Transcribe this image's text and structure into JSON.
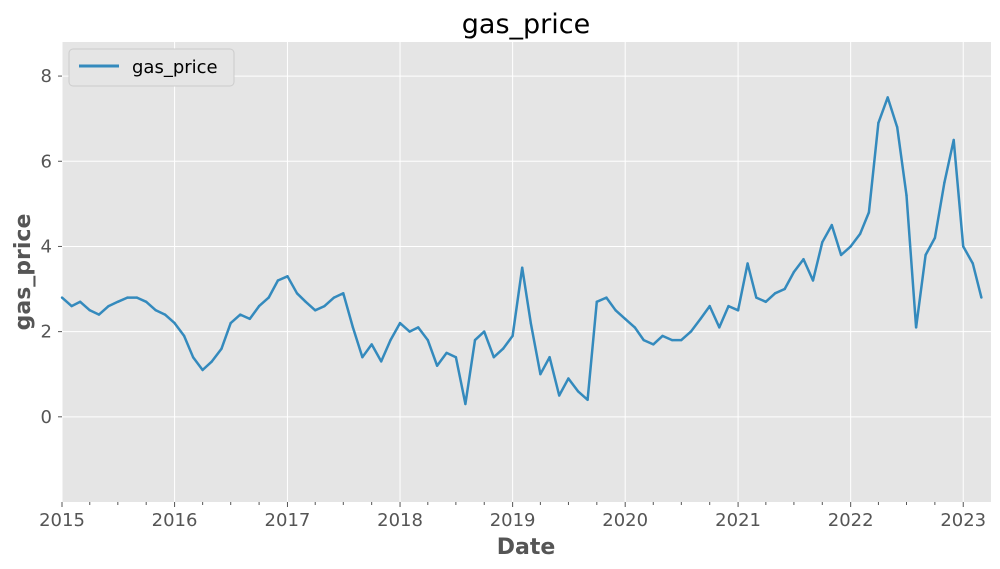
{
  "colors": {
    "plot_background": "#e5e5e5",
    "grid": "#ffffff",
    "line": "#348abd",
    "tick_label": "#555555",
    "axis_label": "#555555"
  },
  "chart_data": {
    "type": "line",
    "title": "gas_price",
    "xlabel": "Date",
    "ylabel": "gas_price",
    "x_type": "date",
    "xlim": [
      "2015-01-01",
      "2023-04-01"
    ],
    "ylim": [
      -2.0,
      8.8
    ],
    "grid": true,
    "legend": {
      "position": "top-left",
      "entries": [
        "gas_price"
      ]
    },
    "x_ticks": [
      {
        "value": "2015-01-01",
        "label": "2015"
      },
      {
        "value": "2016-01-01",
        "label": "2016"
      },
      {
        "value": "2017-01-01",
        "label": "2017"
      },
      {
        "value": "2018-01-01",
        "label": "2018"
      },
      {
        "value": "2019-01-01",
        "label": "2019"
      },
      {
        "value": "2020-01-01",
        "label": "2020"
      },
      {
        "value": "2021-01-01",
        "label": "2021"
      },
      {
        "value": "2022-01-01",
        "label": "2022"
      },
      {
        "value": "2023-01-01",
        "label": "2023"
      }
    ],
    "y_ticks": [
      {
        "value": 0,
        "label": "0"
      },
      {
        "value": 2,
        "label": "2"
      },
      {
        "value": 4,
        "label": "4"
      },
      {
        "value": 6,
        "label": "6"
      },
      {
        "value": 8,
        "label": "8"
      }
    ],
    "series": [
      {
        "name": "gas_price",
        "color": "#348abd",
        "x": [
          "2015-01-01",
          "2015-02-01",
          "2015-03-01",
          "2015-04-01",
          "2015-05-01",
          "2015-06-01",
          "2015-07-01",
          "2015-08-01",
          "2015-09-01",
          "2015-10-01",
          "2015-11-01",
          "2015-12-01",
          "2016-01-01",
          "2016-02-01",
          "2016-03-01",
          "2016-04-01",
          "2016-05-01",
          "2016-06-01",
          "2016-07-01",
          "2016-08-01",
          "2016-09-01",
          "2016-10-01",
          "2016-11-01",
          "2016-12-01",
          "2017-01-01",
          "2017-02-01",
          "2017-03-01",
          "2017-04-01",
          "2017-05-01",
          "2017-06-01",
          "2017-07-01",
          "2017-08-01",
          "2017-09-01",
          "2017-10-01",
          "2017-11-01",
          "2017-12-01",
          "2018-01-01",
          "2018-02-01",
          "2018-03-01",
          "2018-04-01",
          "2018-05-01",
          "2018-06-01",
          "2018-07-01",
          "2018-08-01",
          "2018-09-01",
          "2018-10-01",
          "2018-11-01",
          "2018-12-01",
          "2019-01-01",
          "2019-02-01",
          "2019-03-01",
          "2019-04-01",
          "2019-05-01",
          "2019-06-01",
          "2019-07-01",
          "2019-08-01",
          "2019-09-01",
          "2019-10-01",
          "2019-11-01",
          "2019-12-01",
          "2020-01-01",
          "2020-02-01",
          "2020-03-01",
          "2020-04-01",
          "2020-05-01",
          "2020-06-01",
          "2020-07-01",
          "2020-08-01",
          "2020-09-01",
          "2020-10-01",
          "2020-11-01",
          "2020-12-01",
          "2021-01-01",
          "2021-02-01",
          "2021-03-01",
          "2021-04-01",
          "2021-05-01",
          "2021-06-01",
          "2021-07-01",
          "2021-08-01",
          "2021-09-01",
          "2021-10-01",
          "2021-11-01",
          "2021-12-01",
          "2022-01-01",
          "2022-02-01",
          "2022-03-01",
          "2022-04-01",
          "2022-05-01",
          "2022-06-01",
          "2022-07-01",
          "2022-08-01",
          "2022-09-01",
          "2022-10-01",
          "2022-11-01",
          "2022-12-01",
          "2023-01-01",
          "2023-02-01",
          "2023-03-01"
        ],
        "y": [
          2.8,
          2.6,
          2.7,
          2.5,
          2.4,
          2.6,
          2.7,
          2.8,
          2.8,
          2.7,
          2.5,
          2.4,
          2.2,
          1.9,
          1.4,
          1.1,
          1.3,
          1.6,
          2.2,
          2.4,
          2.3,
          2.6,
          2.8,
          3.2,
          3.3,
          2.9,
          2.7,
          2.5,
          2.6,
          2.8,
          2.9,
          2.1,
          1.4,
          1.7,
          1.3,
          1.8,
          2.2,
          2.0,
          2.1,
          1.8,
          1.2,
          1.5,
          1.4,
          0.3,
          1.8,
          2.0,
          1.4,
          1.6,
          1.9,
          3.5,
          2.2,
          1.0,
          1.4,
          0.5,
          0.9,
          0.6,
          0.4,
          2.7,
          2.8,
          2.5,
          2.3,
          2.1,
          1.8,
          1.7,
          1.9,
          1.8,
          1.8,
          2.0,
          2.3,
          2.6,
          2.1,
          2.6,
          2.5,
          3.6,
          2.8,
          2.7,
          2.9,
          3.0,
          3.4,
          3.7,
          3.2,
          4.1,
          4.5,
          3.8,
          4.0,
          4.3,
          4.8,
          6.9,
          7.5,
          6.8,
          5.2,
          2.1,
          3.8,
          4.2,
          5.5,
          6.5,
          4.0,
          3.6,
          2.8
        ]
      }
    ]
  }
}
